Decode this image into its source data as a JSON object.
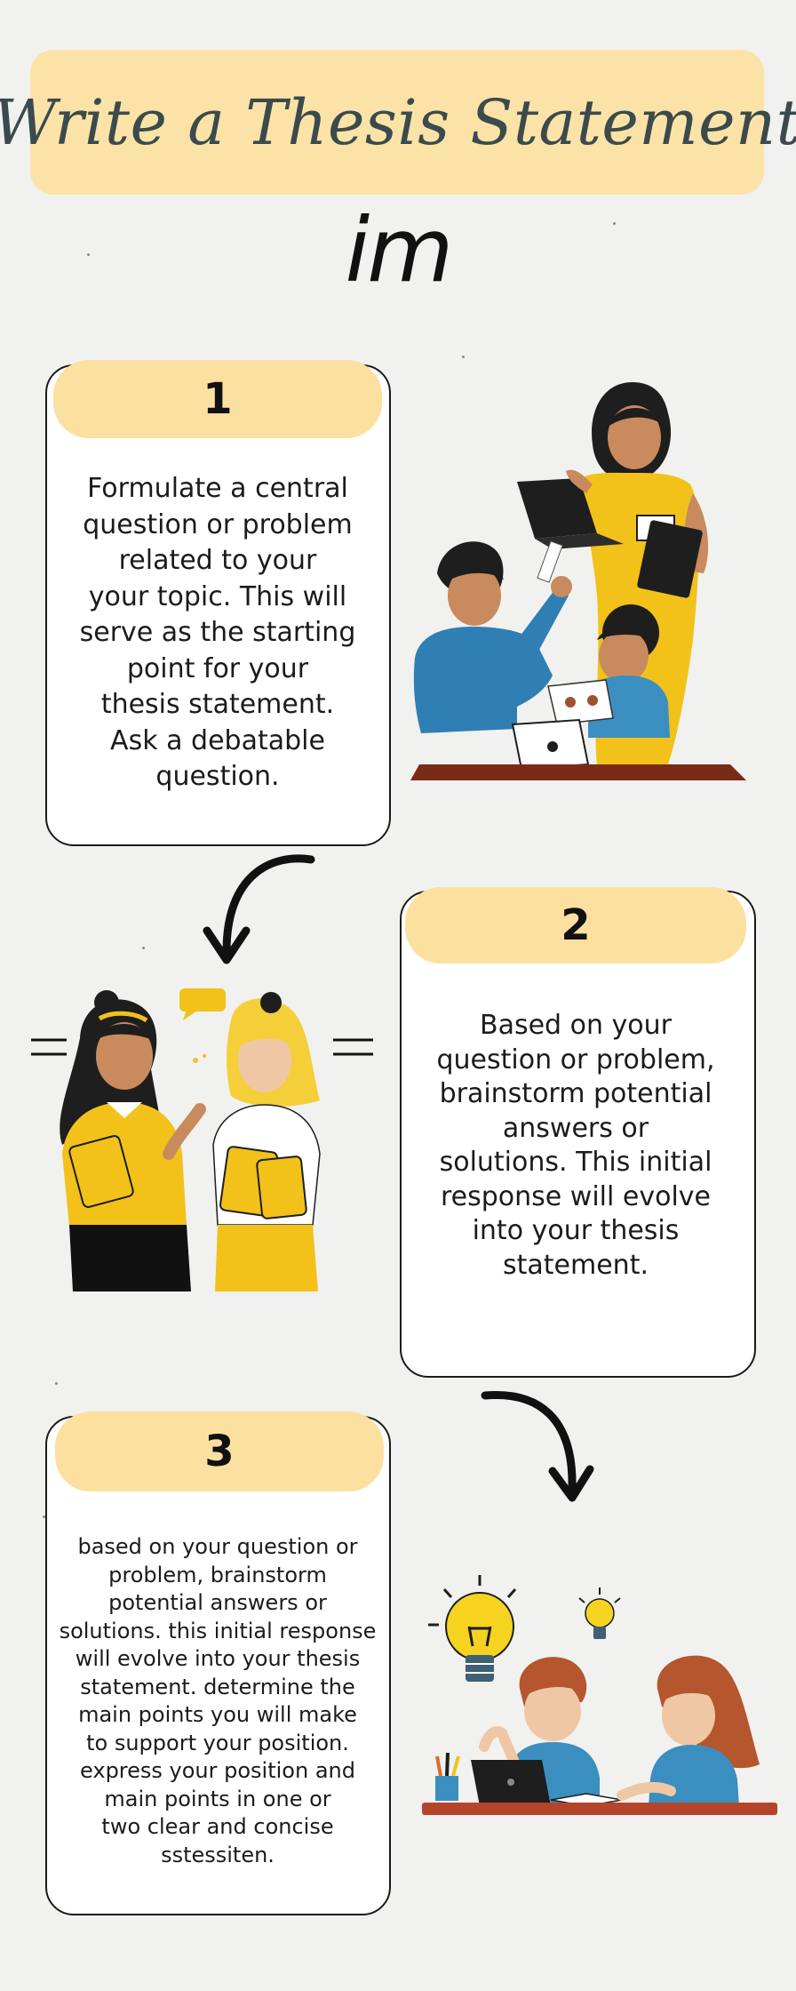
{
  "title": "Write a Thesis Statement",
  "logo_text": "im",
  "steps": [
    {
      "number": "1",
      "lines": [
        "Formulate a central",
        "question or problem",
        "related to your",
        "your topic. This will",
        "serve as the starting",
        "point for your",
        "thesis statement.",
        "Ask a debatable",
        "question."
      ]
    },
    {
      "number": "2",
      "lines": [
        "Based on your",
        "question or problem,",
        "brainstorm potential",
        "answers or",
        "solutions. This initial",
        "response will evolve",
        "into your thesis",
        "statement."
      ]
    },
    {
      "number": "3",
      "lines": [
        "based on your question or",
        "problem, brainstorm",
        "potential answers or",
        "solutions. this initial response",
        "will evolve into your thesis",
        "statement. determine the",
        "main points you will make",
        "to support your position.",
        "express your position and",
        "main points in one or",
        "two clear and concise",
        "sstessiten."
      ]
    }
  ],
  "colors": {
    "background": "#f1f1ef",
    "banner": "#fbe3a8",
    "card_header": "#fbe0a0",
    "title_text": "#3b4a4c",
    "accent_yellow": "#f2c21b",
    "accent_blue": "#3a8fc0"
  },
  "illustrations": [
    "teacher-with-children-illustration",
    "two-girls-talking-illustration",
    "two-students-with-lightbulbs-illustration"
  ]
}
